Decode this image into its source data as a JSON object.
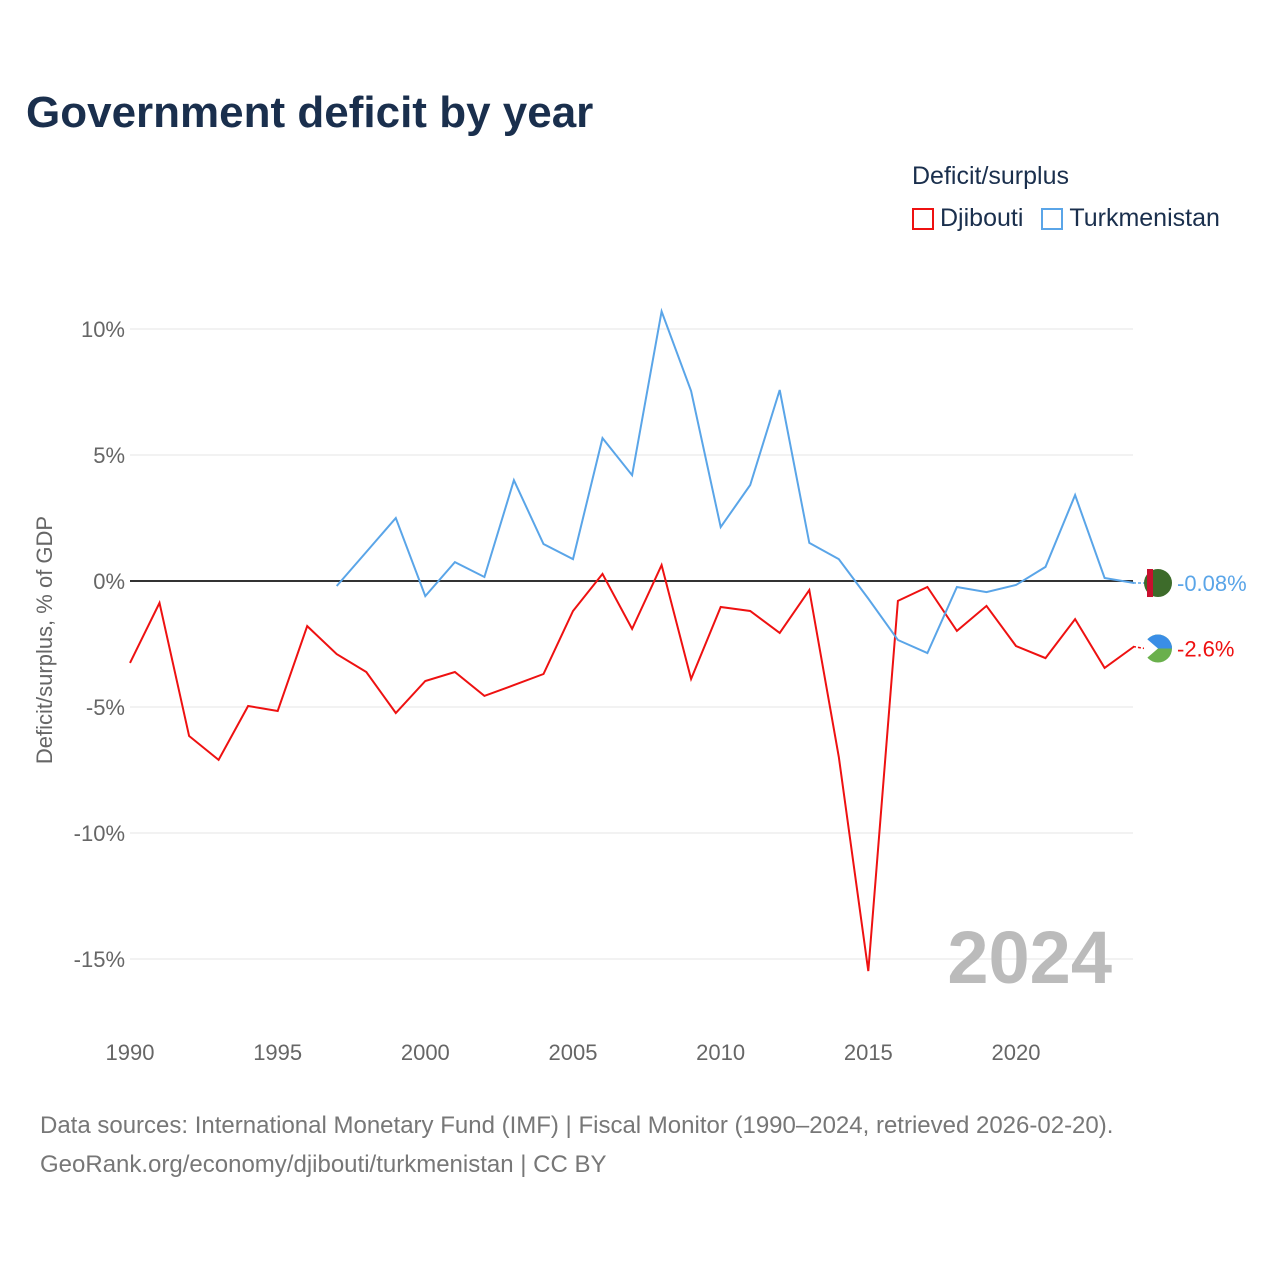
{
  "title": "Government deficit by year",
  "legend": {
    "title": "Deficit/surplus",
    "items": [
      "Djibouti",
      "Turkmenistan"
    ]
  },
  "source": {
    "line1": "Data sources: International Monetary Fund (IMF) | Fiscal Monitor (1990–2024, retrieved 2026-02-20).",
    "line2": "GeoRank.org/economy/djibouti/turkmenistan | CC BY"
  },
  "chart_data": {
    "type": "line",
    "title": "Government deficit by year",
    "xlabel": "",
    "ylabel": "Deficit/surplus, % of GDP",
    "xlim": [
      1990,
      2024
    ],
    "ylim": [
      -17.5,
      12.5
    ],
    "xticks": [
      1990,
      1995,
      2000,
      2005,
      2010,
      2015,
      2020
    ],
    "yticks": [
      10,
      5,
      0,
      -5,
      -10,
      -15
    ],
    "ytick_labels": [
      "10%",
      "5%",
      "0%",
      "-5%",
      "-10%",
      "-15%"
    ],
    "year_watermark": "2024",
    "series": [
      {
        "name": "Djibouti",
        "color": "#ee1111",
        "end_label": "-2.6%",
        "start": 1990,
        "values": [
          -3.25,
          -0.87,
          -6.15,
          -7.1,
          -4.96,
          -5.16,
          -1.79,
          -2.9,
          -3.61,
          -5.24,
          -3.97,
          -3.61,
          -4.56,
          -4.13,
          -3.69,
          -1.19,
          0.28,
          -1.9,
          0.63,
          -3.89,
          -1.03,
          -1.19,
          -2.06,
          -0.36,
          -6.98,
          -15.48,
          -0.79,
          -0.24,
          -1.98,
          -0.99,
          -2.58,
          -3.06,
          -1.51,
          -3.45,
          -2.6
        ]
      },
      {
        "name": "Turkmenistan",
        "color": "#5aa5e8",
        "end_label": "-0.08%",
        "start": 1997,
        "values": [
          -0.2,
          1.15,
          2.5,
          -0.6,
          0.75,
          0.16,
          4.0,
          1.47,
          0.87,
          5.67,
          4.2,
          10.7,
          7.54,
          2.14,
          3.81,
          7.58,
          1.51,
          0.87,
          -0.7,
          -2.34,
          -2.86,
          -0.24,
          -0.44,
          -0.16,
          0.56,
          3.41,
          0.12,
          -0.08
        ]
      }
    ]
  }
}
